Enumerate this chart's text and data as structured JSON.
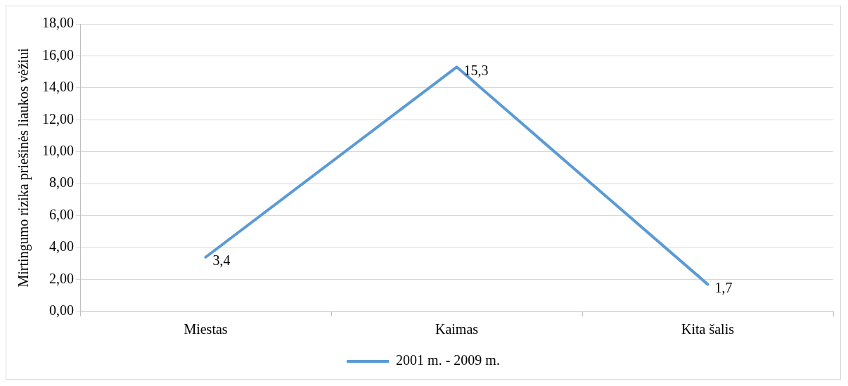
{
  "chart_data": {
    "type": "line",
    "ylabel": "Mirtingumo rizika priešinės liaukos vėžiui",
    "categories": [
      "Miestas",
      "Kaimas",
      "Kita šalis"
    ],
    "series": [
      {
        "name": "2001 m. - 2009 m.",
        "color": "#5b9bd5",
        "values": [
          3.4,
          15.3,
          1.7
        ],
        "value_labels": [
          "3,4",
          "15,3",
          "1,7"
        ]
      }
    ],
    "ylim": [
      0,
      18
    ],
    "yticks": [
      {
        "value": 0,
        "label": "0,00"
      },
      {
        "value": 2,
        "label": "2,00"
      },
      {
        "value": 4,
        "label": "4,00"
      },
      {
        "value": 6,
        "label": "6,00"
      },
      {
        "value": 8,
        "label": "8,00"
      },
      {
        "value": 10,
        "label": "10,00"
      },
      {
        "value": 12,
        "label": "12,00"
      },
      {
        "value": 14,
        "label": "14,00"
      },
      {
        "value": 16,
        "label": "16,00"
      },
      {
        "value": 18,
        "label": "18,00"
      }
    ],
    "grid": "y",
    "legend": "bottom",
    "marker": "none",
    "line_style": "solid"
  }
}
